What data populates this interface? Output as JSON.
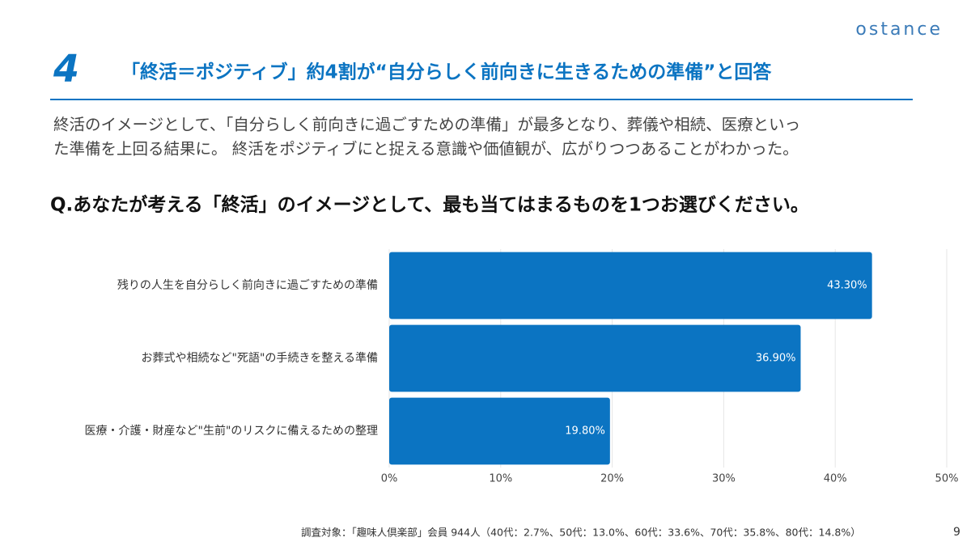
{
  "logo": "ostance",
  "header": {
    "number": "4",
    "title": "「終活＝ポジティブ」約4割が“自分らしく前向きに生きるための準備”と回答"
  },
  "description": [
    "終活のイメージとして、「自分らしく前向きに過ごすための準備」が最多となり、葬儀や相続、医療といっ",
    "た準備を上回る結果に。 終活をポジティブにと捉える意識や価値観が、広がりつつあることがわかった。"
  ],
  "question": "Q.あなたが考える「終活」のイメージとして、最も当てはまるものを1つお選びください。",
  "chart_data": {
    "type": "bar",
    "orientation": "horizontal",
    "categories": [
      "残りの人生を自分らしく前向きに過ごすための準備",
      "お葬式や相続など\"死語\"の手続きを整える準備",
      "医療・介護・財産など\"生前\"のリスクに備えるための整理"
    ],
    "values": [
      43.3,
      36.9,
      19.8
    ],
    "value_labels": [
      "43.30%",
      "36.90%",
      "19.80%"
    ],
    "color": "#0B74C2",
    "xlim": [
      0,
      50
    ],
    "xticks": [
      {
        "value": 0,
        "label": "0%"
      },
      {
        "value": 10,
        "label": "10%"
      },
      {
        "value": 20,
        "label": "20%"
      },
      {
        "value": 30,
        "label": "30%"
      },
      {
        "value": 40,
        "label": "40%"
      },
      {
        "value": 50,
        "label": "50%"
      }
    ],
    "grid": true
  },
  "footnote": "調査対象：「趣味人倶楽部」会員 944人（40代：2.7%、50代：13.0%、60代：33.6%、70代：35.8%、80代：14.8%）",
  "page_number": "9"
}
